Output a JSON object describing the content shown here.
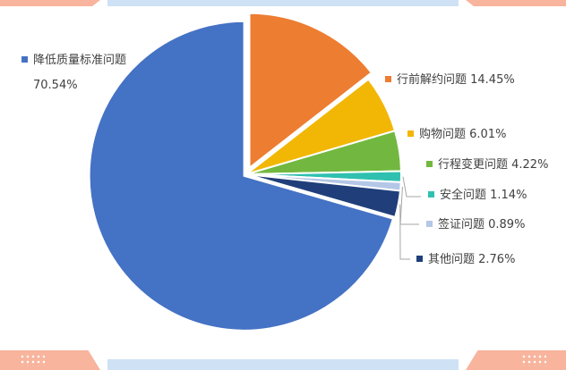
{
  "chart_data": {
    "type": "pie",
    "title": "",
    "legend": "none",
    "slices": [
      {
        "label": "行前解约问题",
        "value": 14.45,
        "value_text": "14.45%",
        "color": "#ed7d31"
      },
      {
        "label": "购物问题",
        "value": 6.01,
        "value_text": "6.01%",
        "color": "#f2b705"
      },
      {
        "label": "行程变更问题",
        "value": 4.22,
        "value_text": "4.22%",
        "color": "#72b840"
      },
      {
        "label": "安全问题",
        "value": 1.14,
        "value_text": "1.14%",
        "color": "#2fc0b0"
      },
      {
        "label": "签证问题",
        "value": 0.89,
        "value_text": "0.89%",
        "color": "#b4c7e7"
      },
      {
        "label": "其他问题",
        "value": 2.76,
        "value_text": "2.76%",
        "color": "#203f7a"
      },
      {
        "label": "降低质量标准问题",
        "value": 70.54,
        "value_text": "70.54%",
        "color": "#4472c4"
      }
    ]
  }
}
